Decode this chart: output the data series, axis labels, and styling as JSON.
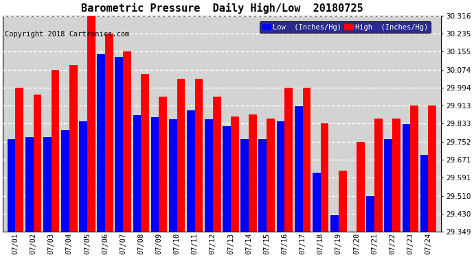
{
  "title": "Barometric Pressure  Daily High/Low  20180725",
  "copyright": "Copyright 2018 Cartronics.com",
  "dates": [
    "07/01",
    "07/02",
    "07/03",
    "07/04",
    "07/05",
    "07/06",
    "07/07",
    "07/08",
    "07/09",
    "07/10",
    "07/11",
    "07/12",
    "07/13",
    "07/14",
    "07/15",
    "07/16",
    "07/17",
    "07/18",
    "07/19",
    "07/20",
    "07/21",
    "07/22",
    "07/23",
    "07/24"
  ],
  "low_values": [
    29.762,
    29.772,
    29.772,
    29.802,
    29.842,
    30.142,
    30.132,
    29.872,
    29.862,
    29.852,
    29.892,
    29.852,
    29.822,
    29.762,
    29.762,
    29.842,
    29.912,
    29.612,
    29.422,
    29.349,
    29.51,
    29.762,
    29.832,
    29.692
  ],
  "high_values": [
    29.994,
    29.964,
    30.074,
    30.094,
    30.316,
    30.235,
    30.155,
    30.055,
    29.954,
    30.034,
    30.034,
    29.954,
    29.864,
    29.874,
    29.854,
    29.994,
    29.994,
    29.834,
    29.622,
    29.752,
    29.854,
    29.854,
    29.914,
    29.914
  ],
  "low_color": "#0000ff",
  "high_color": "#ff0000",
  "plot_bg_color": "#d3d3d3",
  "fig_bg_color": "#ffffff",
  "yticks": [
    29.349,
    29.43,
    29.51,
    29.591,
    29.671,
    29.752,
    29.833,
    29.913,
    29.994,
    30.074,
    30.155,
    30.235,
    30.316
  ],
  "ymin": 29.349,
  "ymax": 30.316,
  "legend_low_label": "Low  (Inches/Hg)",
  "legend_high_label": "High  (Inches/Hg)",
  "title_fontsize": 11,
  "copyright_fontsize": 7.5,
  "tick_fontsize": 7.5,
  "legend_fontsize": 7.5
}
